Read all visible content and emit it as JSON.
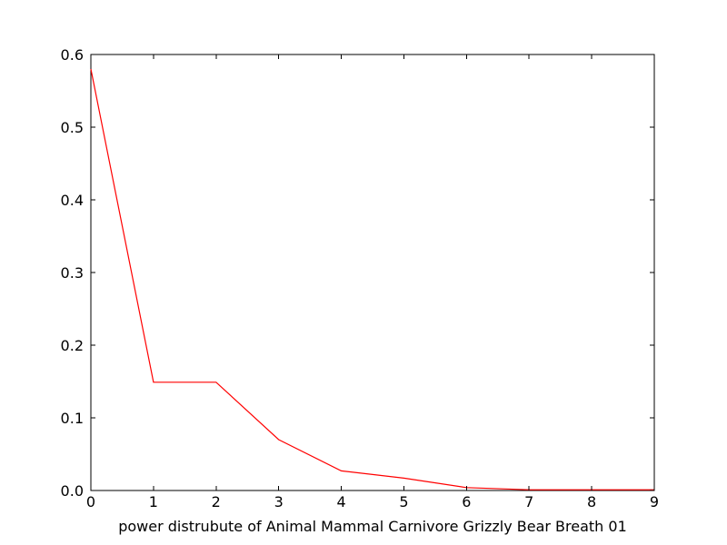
{
  "chart_data": {
    "type": "line",
    "title": "",
    "xlabel": "power distrubute of Animal Mammal Carnivore Grizzly Bear Breath 01",
    "ylabel": "",
    "xlim": [
      0,
      9
    ],
    "ylim": [
      0.0,
      0.6
    ],
    "xticks": [
      "0",
      "1",
      "2",
      "3",
      "4",
      "5",
      "6",
      "7",
      "8",
      "9"
    ],
    "yticks": [
      "0.0",
      "0.1",
      "0.2",
      "0.3",
      "0.4",
      "0.5",
      "0.6"
    ],
    "grid": false,
    "legend": "none",
    "series": [
      {
        "color": "#ff0000",
        "x": [
          0,
          1,
          2,
          3,
          4,
          5,
          6,
          7,
          8,
          9
        ],
        "y": [
          0.58,
          0.149,
          0.149,
          0.07,
          0.027,
          0.017,
          0.004,
          0.001,
          0.001,
          0.001
        ]
      }
    ]
  }
}
